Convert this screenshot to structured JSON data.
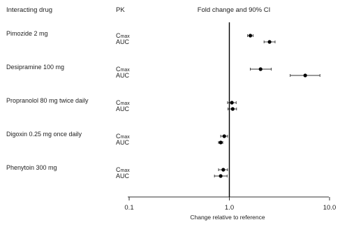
{
  "headers": {
    "drug": "Interacting drug",
    "pk": "PK",
    "fold": "Fold change and 90% CI"
  },
  "chart_data": {
    "type": "scatter",
    "subtype": "forest-plot",
    "xscale": "log",
    "xlim": [
      0.1,
      10.0
    ],
    "xticks": [
      "0.1",
      "1.0",
      "10.0"
    ],
    "xlabel": "Change relative to reference",
    "reference_line": 1.0,
    "groups": [
      {
        "drug": "Pimozide 2 mg",
        "rows": [
          {
            "pk": "Cmax",
            "pk_main": "C",
            "pk_sub": "max",
            "estimate": 1.62,
            "ci": [
              1.52,
              1.73
            ]
          },
          {
            "pk": "AUC",
            "pk_main": "AUC",
            "pk_sub": "",
            "estimate": 2.52,
            "ci": [
              2.22,
              2.86
            ]
          }
        ]
      },
      {
        "drug": "Desipramine 100 mg",
        "rows": [
          {
            "pk": "Cmax",
            "pk_main": "C",
            "pk_sub": "max",
            "estimate": 2.05,
            "ci": [
              1.62,
              2.62
            ]
          },
          {
            "pk": "AUC",
            "pk_main": "AUC",
            "pk_sub": "",
            "estimate": 5.72,
            "ci": [
              4.05,
              8.02
            ]
          }
        ]
      },
      {
        "drug": "Propranolol 80 mg twice daily",
        "rows": [
          {
            "pk": "Cmax",
            "pk_main": "C",
            "pk_sub": "max",
            "estimate": 1.06,
            "ci": [
              0.96,
              1.17
            ]
          },
          {
            "pk": "AUC",
            "pk_main": "AUC",
            "pk_sub": "",
            "estimate": 1.08,
            "ci": [
              0.97,
              1.18
            ]
          }
        ]
      },
      {
        "drug": "Digoxin 0.25 mg once daily",
        "rows": [
          {
            "pk": "Cmax",
            "pk_main": "C",
            "pk_sub": "max",
            "estimate": 0.89,
            "ci": [
              0.82,
              0.96
            ]
          },
          {
            "pk": "AUC",
            "pk_main": "AUC",
            "pk_sub": "",
            "estimate": 0.82,
            "ci": [
              0.78,
              0.86
            ]
          }
        ]
      },
      {
        "drug": "Phenytoin 300 mg",
        "rows": [
          {
            "pk": "Cmax",
            "pk_main": "C",
            "pk_sub": "max",
            "estimate": 0.87,
            "ci": [
              0.78,
              0.96
            ]
          },
          {
            "pk": "AUC",
            "pk_main": "AUC",
            "pk_sub": "",
            "estimate": 0.82,
            "ci": [
              0.71,
              0.95
            ]
          }
        ]
      }
    ]
  }
}
